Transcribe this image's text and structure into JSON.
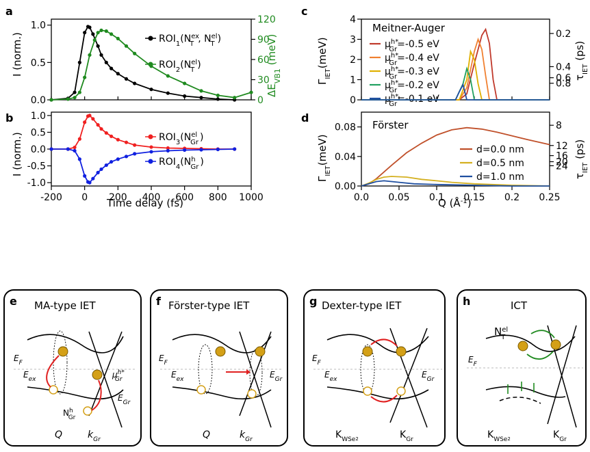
{
  "panel_labels": {
    "a": "a",
    "b": "b",
    "c": "c",
    "d": "d",
    "e": "e",
    "f": "f",
    "g": "g",
    "h": "h"
  },
  "colors": {
    "black": "#000000",
    "green": "#1f8a1f",
    "red": "#f02020",
    "blue": "#1020e0",
    "c1": "#c0392b",
    "c2": "#f08030",
    "c3": "#e0b000",
    "c4": "#20a060",
    "c5": "#1f4fa0",
    "d1": "#c0502a",
    "d2": "#d4b020",
    "d3": "#1f4fa0"
  },
  "axes": {
    "shared_x_label": "Time delay (fs)",
    "x_ticks": [
      "-200",
      "0",
      "200",
      "400",
      "600",
      "800",
      "1000"
    ],
    "a_ylabel": "I (norm.)",
    "a_y_ticks": [
      "0.0",
      "0.5",
      "1.0"
    ],
    "a_y2label": "ΔE",
    "a_y2label_sub": "VB1",
    "a_y2label_unit": " (meV)",
    "a_y2_ticks": [
      "0",
      "30",
      "60",
      "90",
      "120"
    ],
    "b_ylabel": "I (norm.)",
    "b_y_ticks": [
      "-1.0",
      "-0.5",
      "0.0",
      "0.5",
      "1.0"
    ],
    "c_ylabel": "Γ",
    "c_ylabel_sub": "IET",
    "c_ylabel_unit": "(meV)",
    "c_y_ticks": [
      "0",
      "1",
      "2",
      "3",
      "4"
    ],
    "c_y2_ticks": [
      "0.2",
      "0.4",
      "0.6",
      "0.8"
    ],
    "c_y2label": "τ",
    "c_y2label_sub": "IET",
    "c_y2label_unit": " (ps)",
    "d_ylabel": "Γ",
    "d_ylabel_sub": "IET",
    "d_ylabel_unit": "(meV)",
    "d_y_ticks": [
      "0.00",
      "0.04",
      "0.08"
    ],
    "d_y2_ticks": [
      "8",
      "12",
      "16",
      "20",
      "24"
    ],
    "d_y2label": "τ",
    "d_y2label_sub": "IET",
    "d_y2label_unit": " (ps)",
    "d_x_ticks": [
      "0.0",
      "0.05",
      "0.1",
      "0.15",
      "0.2",
      "0.25"
    ],
    "d_xlabel": "Q (Å",
    "d_xlabel_sup": "-1",
    "d_xlabel_end": ")"
  },
  "legend": {
    "a1": {
      "pre": "ROI",
      "sub": "1",
      "mid": "(N",
      "sup1": "ex",
      "sub1": "T",
      "sep": ", N",
      "sup2": "el",
      "sub2": "T",
      "end": ")"
    },
    "a2": {
      "pre": "ROI",
      "sub": "2",
      "mid": "(N",
      "sup1": "el",
      "sub1": "T",
      "end": ")"
    },
    "b1": {
      "pre": "ROI",
      "sub": "3",
      "mid": "(N",
      "sup1": "el",
      "sub1": "Gr",
      "end": ")"
    },
    "b2": {
      "pre": "ROI",
      "sub": "4",
      "mid": "(N",
      "sup1": "h",
      "sub1": "Gr",
      "end": ")"
    },
    "c_title": "Meitner-Auger",
    "c_entries": [
      {
        "pre": "μ",
        "sup": "h*",
        "sub": "Gr",
        "val": "=-0.5 eV"
      },
      {
        "pre": "μ",
        "sup": "h*",
        "sub": "Gr",
        "val": "=-0.4 eV"
      },
      {
        "pre": "μ",
        "sup": "h*",
        "sub": "Gr",
        "val": "=-0.3 eV"
      },
      {
        "pre": "μ",
        "sup": "h*",
        "sub": "Gr",
        "val": "=-0.2 eV"
      },
      {
        "pre": "μ",
        "sup": "h*",
        "sub": "Gr",
        "val": "=-0.1 eV"
      }
    ],
    "d_title": "Förster",
    "d_entries": [
      "d=0.0 nm",
      "d=0.5 nm",
      "d=1.0 nm"
    ]
  },
  "diagrams": {
    "e_title": "MA-type IET",
    "f_title": "Förster-type IET",
    "g_title": "Dexter-type IET",
    "h_title": "ICT",
    "EF": "E",
    "EF_sub": "F",
    "Eex": "E",
    "Eex_sub": "ex",
    "EGr": "E",
    "EGr_sub": "Gr",
    "Q": "Q",
    "kGr": "k",
    "kGr_sub": "Gr",
    "mu": "μ",
    "mu_sup": "h*",
    "mu_sub": "Gr",
    "NGr": "N",
    "NGr_sup": "h",
    "NGr_sub": "Gr",
    "NT": "N",
    "NT_sup": "el",
    "NT_sub": "T",
    "KWSe2": "K",
    "KWSe2_sub": "WSe",
    "KWSe2_subsub": "2",
    "KGr": "K",
    "KGr_sub": "Gr"
  },
  "chart_data": [
    {
      "panel": "a",
      "type": "line",
      "xlim": [
        -200,
        1000
      ],
      "ylim": [
        0,
        1.08
      ],
      "y2lim": [
        0,
        120
      ],
      "series": [
        {
          "name": "ROI1",
          "color": "black",
          "x": [
            -200,
            -100,
            -60,
            -30,
            0,
            20,
            30,
            50,
            80,
            100,
            130,
            160,
            200,
            250,
            300,
            400,
            500,
            600,
            700,
            800,
            900
          ],
          "y": [
            0.0,
            0.02,
            0.1,
            0.5,
            0.9,
            0.98,
            0.97,
            0.88,
            0.72,
            0.6,
            0.5,
            0.42,
            0.35,
            0.28,
            0.22,
            0.14,
            0.09,
            0.05,
            0.03,
            0.01,
            0.0
          ]
        },
        {
          "name": "ROI2",
          "color": "green",
          "x": [
            -200,
            -100,
            -60,
            -30,
            0,
            30,
            60,
            80,
            100,
            130,
            160,
            200,
            250,
            300,
            400,
            500,
            600,
            700,
            800,
            900,
            1000
          ],
          "y": [
            0.0,
            0.01,
            0.03,
            0.1,
            0.3,
            0.6,
            0.8,
            0.9,
            0.93,
            0.92,
            0.88,
            0.82,
            0.72,
            0.62,
            0.45,
            0.32,
            0.22,
            0.12,
            0.06,
            0.03,
            0.1
          ]
        }
      ]
    },
    {
      "panel": "b",
      "type": "line",
      "xlim": [
        -200,
        1000
      ],
      "ylim": [
        -1.1,
        1.1
      ],
      "series": [
        {
          "name": "ROI3",
          "color": "red",
          "x": [
            -200,
            -100,
            -60,
            -30,
            0,
            20,
            30,
            50,
            80,
            100,
            130,
            160,
            200,
            250,
            300,
            400,
            500,
            600,
            700,
            800,
            900
          ],
          "y": [
            0.0,
            0.0,
            0.05,
            0.3,
            0.8,
            0.98,
            1.0,
            0.9,
            0.72,
            0.6,
            0.48,
            0.38,
            0.28,
            0.2,
            0.12,
            0.06,
            0.03,
            0.02,
            0.01,
            0.0,
            0.0
          ]
        },
        {
          "name": "ROI4",
          "color": "blue",
          "x": [
            -200,
            -100,
            -60,
            -30,
            0,
            20,
            30,
            50,
            80,
            100,
            130,
            160,
            200,
            250,
            300,
            400,
            500,
            600,
            700,
            800,
            900
          ],
          "y": [
            0.0,
            0.0,
            -0.05,
            -0.3,
            -0.8,
            -0.98,
            -1.0,
            -0.88,
            -0.7,
            -0.6,
            -0.48,
            -0.38,
            -0.3,
            -0.22,
            -0.14,
            -0.08,
            -0.05,
            -0.03,
            -0.02,
            -0.01,
            0.0
          ]
        }
      ]
    },
    {
      "panel": "c",
      "type": "line",
      "xlim": [
        0,
        0.25
      ],
      "ylim": [
        0,
        4
      ],
      "series": [
        {
          "name": "=-0.5 eV",
          "color": "c1",
          "x": [
            0,
            0.13,
            0.14,
            0.15,
            0.16,
            0.165,
            0.17,
            0.175,
            0.18,
            0.25
          ],
          "y": [
            0,
            0,
            0.3,
            1.8,
            3.2,
            3.5,
            2.8,
            1.0,
            0,
            0
          ]
        },
        {
          "name": "=-0.4 eV",
          "color": "c2",
          "x": [
            0,
            0.13,
            0.14,
            0.15,
            0.155,
            0.16,
            0.165,
            0.17,
            0.25
          ],
          "y": [
            0,
            0,
            0.6,
            2.4,
            3.0,
            2.5,
            1.2,
            0,
            0
          ]
        },
        {
          "name": "=-0.3 eV",
          "color": "c3",
          "x": [
            0,
            0.13,
            0.14,
            0.145,
            0.15,
            0.155,
            0.16,
            0.25
          ],
          "y": [
            0,
            0,
            1.0,
            2.4,
            2.0,
            0.8,
            0,
            0
          ]
        },
        {
          "name": "=-0.2 eV",
          "color": "c4",
          "x": [
            0,
            0.125,
            0.135,
            0.14,
            0.145,
            0.15,
            0.25
          ],
          "y": [
            0,
            0,
            0.8,
            1.55,
            1.0,
            0,
            0
          ]
        },
        {
          "name": "=-0.1 eV",
          "color": "c5",
          "x": [
            0,
            0.125,
            0.13,
            0.135,
            0.14,
            0.25
          ],
          "y": [
            0,
            0,
            0.4,
            0.75,
            0,
            0
          ]
        }
      ]
    },
    {
      "panel": "d",
      "type": "line",
      "xlim": [
        0,
        0.25
      ],
      "ylim": [
        0,
        0.1
      ],
      "series": [
        {
          "name": "d=0.0 nm",
          "color": "d1",
          "x": [
            0,
            0.01,
            0.02,
            0.04,
            0.06,
            0.08,
            0.1,
            0.12,
            0.14,
            0.16,
            0.18,
            0.2,
            0.22,
            0.25
          ],
          "y": [
            0,
            0.003,
            0.01,
            0.028,
            0.045,
            0.058,
            0.069,
            0.076,
            0.079,
            0.077,
            0.073,
            0.068,
            0.063,
            0.056
          ]
        },
        {
          "name": "d=0.5 nm",
          "color": "d2",
          "x": [
            0,
            0.01,
            0.02,
            0.03,
            0.04,
            0.05,
            0.06,
            0.08,
            0.1,
            0.12,
            0.15,
            0.2,
            0.25
          ],
          "y": [
            0,
            0.004,
            0.009,
            0.012,
            0.013,
            0.0125,
            0.012,
            0.009,
            0.007,
            0.005,
            0.003,
            0.001,
            0.0
          ]
        },
        {
          "name": "d=1.0 nm",
          "color": "d3",
          "x": [
            0,
            0.01,
            0.02,
            0.03,
            0.04,
            0.05,
            0.07,
            0.1,
            0.15,
            0.2,
            0.25
          ],
          "y": [
            0,
            0.003,
            0.006,
            0.007,
            0.006,
            0.005,
            0.003,
            0.002,
            0.001,
            0.0,
            0.0
          ]
        }
      ]
    }
  ]
}
